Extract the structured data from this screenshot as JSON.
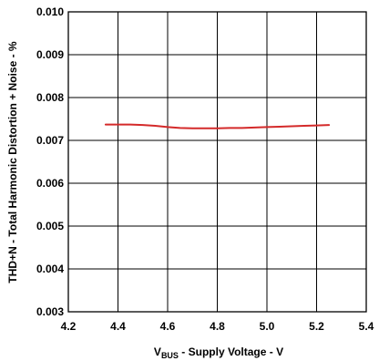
{
  "chart_data": {
    "type": "line",
    "xlabel_main": "V",
    "xlabel_sub": "BUS",
    "xlabel_rest": " - Supply Voltage - V",
    "ylabel": "THD+N - Total Harmonic Distortion + Noise - %",
    "xlim": [
      4.2,
      5.4
    ],
    "ylim": [
      0.003,
      0.01
    ],
    "x_ticks": [
      4.2,
      4.4,
      4.6,
      4.8,
      5.0,
      5.2,
      5.4
    ],
    "x_tick_labels": [
      "4.2",
      "4.4",
      "4.6",
      "4.8",
      "5.0",
      "5.2",
      "5.4"
    ],
    "y_ticks": [
      0.003,
      0.004,
      0.005,
      0.006,
      0.007,
      0.008,
      0.009,
      0.01
    ],
    "y_tick_labels": [
      "0.003",
      "0.004",
      "0.005",
      "0.006",
      "0.007",
      "0.008",
      "0.009",
      "0.010"
    ],
    "grid": true,
    "series": [
      {
        "color": "#d42a2a",
        "x": [
          4.35,
          4.4,
          4.45,
          4.5,
          4.55,
          4.6,
          4.65,
          4.7,
          4.75,
          4.8,
          4.85,
          4.9,
          4.95,
          5.0,
          5.05,
          5.1,
          5.15,
          5.2,
          5.25
        ],
        "y": [
          0.00737,
          0.00737,
          0.00737,
          0.00736,
          0.00734,
          0.00731,
          0.00729,
          0.00728,
          0.00728,
          0.00728,
          0.00729,
          0.00729,
          0.0073,
          0.00731,
          0.00732,
          0.00733,
          0.00734,
          0.00735,
          0.00736
        ]
      }
    ]
  }
}
